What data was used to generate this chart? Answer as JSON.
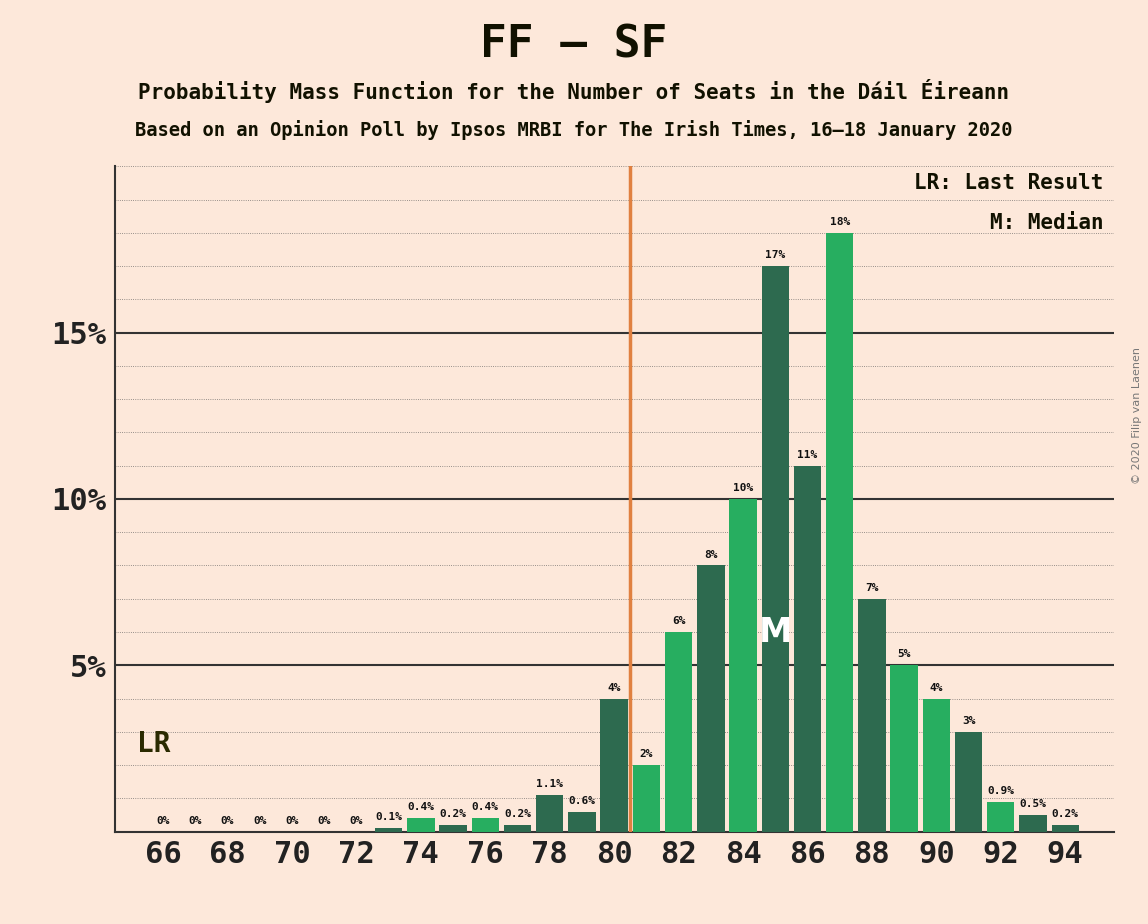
{
  "title": "FF – SF",
  "subtitle1": "Probability Mass Function for the Number of Seats in the Dáil Éireann",
  "subtitle2": "Based on an Opinion Poll by Ipsos MRBI for The Irish Times, 16–18 January 2020",
  "copyright": "© 2020 Filip van Laenen",
  "legend_lr": "LR: Last Result",
  "legend_m": "M: Median",
  "background_color": "#fde8da",
  "seats": [
    66,
    67,
    68,
    69,
    70,
    71,
    72,
    73,
    74,
    75,
    76,
    77,
    78,
    79,
    80,
    81,
    82,
    83,
    84,
    85,
    86,
    87,
    88,
    89,
    90,
    91,
    92,
    93,
    94
  ],
  "values": [
    0.0,
    0.0,
    0.0,
    0.0,
    0.0,
    0.0,
    0.0,
    0.001,
    0.004,
    0.002,
    0.004,
    0.002,
    0.011,
    0.006,
    0.04,
    0.02,
    0.06,
    0.08,
    0.1,
    0.17,
    0.11,
    0.18,
    0.07,
    0.05,
    0.04,
    0.03,
    0.009,
    0.005,
    0.002
  ],
  "bar_colors": [
    "#2d6a4f",
    "#2d6a4f",
    "#2d6a4f",
    "#2d6a4f",
    "#2d6a4f",
    "#2d6a4f",
    "#2d6a4f",
    "#2d6a4f",
    "#27ae60",
    "#2d6a4f",
    "#27ae60",
    "#2d6a4f",
    "#2d6a4f",
    "#2d6a4f",
    "#2d6a4f",
    "#27ae60",
    "#27ae60",
    "#2d6a4f",
    "#27ae60",
    "#2d6a4f",
    "#2d6a4f",
    "#27ae60",
    "#2d6a4f",
    "#27ae60",
    "#27ae60",
    "#2d6a4f",
    "#27ae60",
    "#2d6a4f",
    "#2d6a4f"
  ],
  "bar_labels": [
    "0%",
    "0%",
    "0%",
    "0%",
    "0%",
    "0%",
    "0%",
    "0.1%",
    "0.4%",
    "0.2%",
    "0.4%",
    "0.2%",
    "1.1%",
    "0.6%",
    "4%",
    "2%",
    "6%",
    "8%",
    "10%",
    "17%",
    "11%",
    "18%",
    "7%",
    "5%",
    "4%",
    "3%",
    "0.9%",
    "0.5%",
    "0.2%"
  ],
  "lr_seat": 81,
  "median_seat": 85,
  "ylim": [
    0.0,
    0.2
  ],
  "yticks": [
    0.0,
    0.05,
    0.1,
    0.15,
    0.2
  ],
  "ytick_labels": [
    "",
    "5%",
    "10%",
    "15%",
    ""
  ],
  "xtick_positions": [
    66,
    68,
    70,
    72,
    74,
    76,
    78,
    80,
    82,
    84,
    86,
    88,
    90,
    92,
    94
  ]
}
